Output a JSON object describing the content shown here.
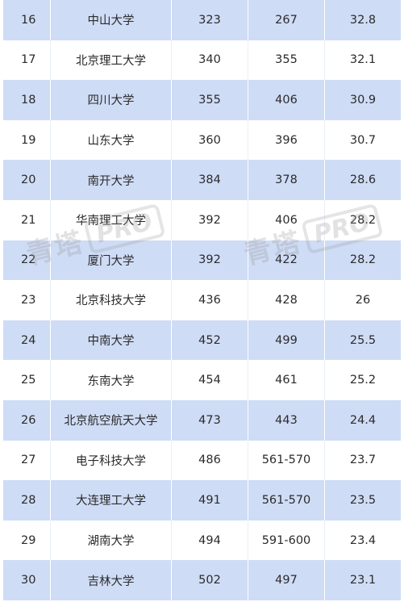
{
  "rows": [
    {
      "rank": "16",
      "name": "中山大学",
      "col_a": "323",
      "col_b": "267",
      "score": "32.8"
    },
    {
      "rank": "17",
      "name": "北京理工大学",
      "col_a": "340",
      "col_b": "355",
      "score": "32.1"
    },
    {
      "rank": "18",
      "name": "四川大学",
      "col_a": "355",
      "col_b": "406",
      "score": "30.9"
    },
    {
      "rank": "19",
      "name": "山东大学",
      "col_a": "360",
      "col_b": "396",
      "score": "30.7"
    },
    {
      "rank": "20",
      "name": "南开大学",
      "col_a": "384",
      "col_b": "378",
      "score": "28.6"
    },
    {
      "rank": "21",
      "name": "华南理工大学",
      "col_a": "392",
      "col_b": "406",
      "score": "28.2"
    },
    {
      "rank": "22",
      "name": "厦门大学",
      "col_a": "392",
      "col_b": "422",
      "score": "28.2"
    },
    {
      "rank": "23",
      "name": "北京科技大学",
      "col_a": "436",
      "col_b": "428",
      "score": "26"
    },
    {
      "rank": "24",
      "name": "中南大学",
      "col_a": "452",
      "col_b": "499",
      "score": "25.5"
    },
    {
      "rank": "25",
      "name": "东南大学",
      "col_a": "454",
      "col_b": "461",
      "score": "25.2"
    },
    {
      "rank": "26",
      "name": "北京航空航天大学",
      "col_a": "473",
      "col_b": "443",
      "score": "24.4"
    },
    {
      "rank": "27",
      "name": "电子科技大学",
      "col_a": "486",
      "col_b": "561-570",
      "score": "23.7"
    },
    {
      "rank": "28",
      "name": "大连理工大学",
      "col_a": "491",
      "col_b": "561-570",
      "score": "23.5"
    },
    {
      "rank": "29",
      "name": "湖南大学",
      "col_a": "494",
      "col_b": "591-600",
      "score": "23.4"
    },
    {
      "rank": "30",
      "name": "吉林大学",
      "col_a": "502",
      "col_b": "497",
      "score": "23.1"
    }
  ],
  "watermark": {
    "text": "青塔",
    "badge": "PRO"
  },
  "colors": {
    "stripe": "#cfdcf6",
    "plain": "#ffffff",
    "text": "#2b2b2b"
  }
}
